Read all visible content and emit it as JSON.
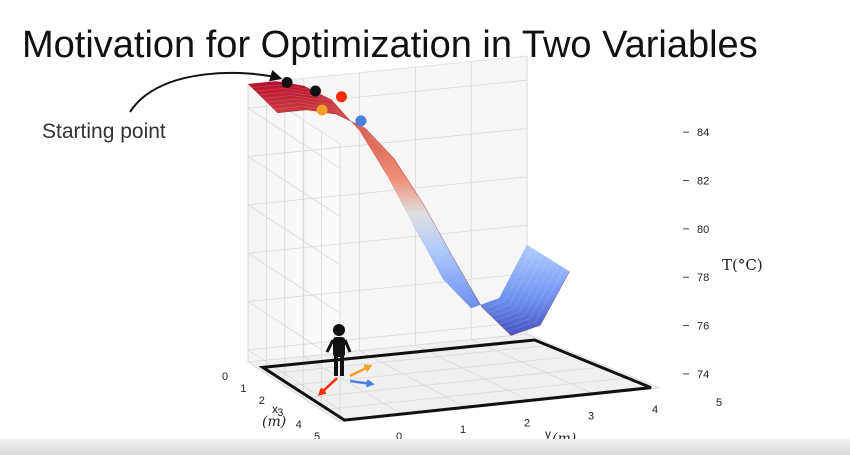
{
  "slide": {
    "title": "Motivation for Optimization in Two Variables",
    "annotation": "Starting point"
  },
  "colors": {
    "surface_high": "#b40426",
    "surface_mid": "#dddcdc",
    "surface_low": "#3b4cc0",
    "start_point": "#111111",
    "step_red": "#ff2a00",
    "step_orange": "#f5a028",
    "step_blue": "#4a7fe0",
    "floor_border": "#111111"
  },
  "chart_data": {
    "type": "surface3d",
    "title": "",
    "xlabel": "x",
    "xlabel_unit": "(m)",
    "ylabel": "y",
    "ylabel_unit": "(m)",
    "zlabel": "T",
    "zlabel_unit": "(°C)",
    "xlim": [
      0,
      5
    ],
    "ylim": [
      0,
      5
    ],
    "zlim": [
      73.5,
      85
    ],
    "x_ticks": [
      "0",
      "1",
      "2",
      "3",
      "4",
      "5"
    ],
    "y_ticks": [
      "0",
      "1",
      "2",
      "3",
      "4",
      "5"
    ],
    "z_ticks": [
      "74",
      "76",
      "78",
      "80",
      "82",
      "84"
    ],
    "grid": true,
    "surface_profile": {
      "note_free": true,
      "y": [
        0,
        0.5,
        1,
        1.5,
        2,
        2.5,
        3,
        3.5,
        4,
        4.5,
        5
      ],
      "temperature_at_x0": [
        85,
        85,
        84.7,
        84,
        82.6,
        80.6,
        78.3,
        76.1,
        74.8,
        75.1,
        77.2
      ]
    },
    "points": [
      {
        "role": "start",
        "x": 0,
        "y": 0.7,
        "z": 84.9
      },
      {
        "role": "step",
        "x": 0.3,
        "y": 1.1,
        "z": 84.6
      },
      {
        "role": "step",
        "x": 1.2,
        "y": 0.9,
        "z": 84.3
      },
      {
        "role": "step",
        "x": 0.2,
        "y": 1.6,
        "z": 84.2
      },
      {
        "role": "step",
        "x": 1.4,
        "y": 1.5,
        "z": 83.8
      }
    ]
  }
}
